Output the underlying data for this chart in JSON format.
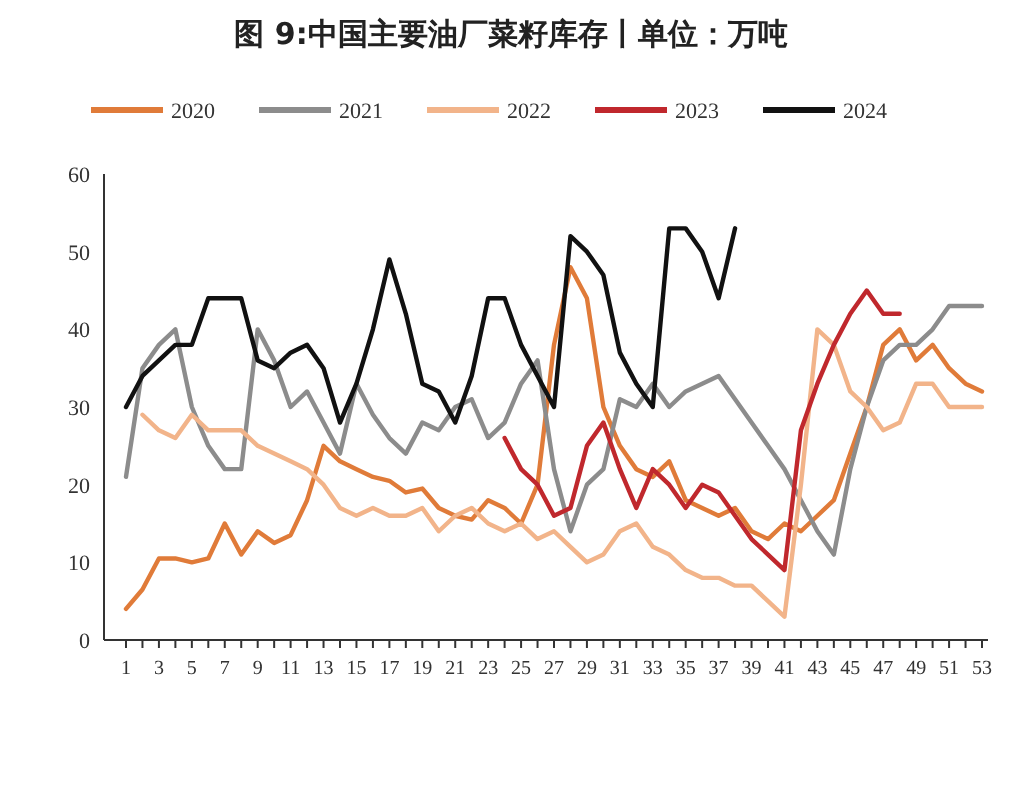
{
  "chart_data": {
    "type": "line",
    "title": "图 9:中国主要油厂菜籽库存丨单位：万吨",
    "categories": [
      "1",
      null,
      "3",
      null,
      "5",
      null,
      "7",
      null,
      "9",
      null,
      "11",
      null,
      "13",
      null,
      "15",
      null,
      "17",
      null,
      "19",
      null,
      "21",
      null,
      "23",
      null,
      "25",
      null,
      "27",
      null,
      "29",
      null,
      "31",
      null,
      "33",
      null,
      "35",
      null,
      "37",
      null,
      "39",
      null,
      "41",
      null,
      "43",
      null,
      "45",
      null,
      "47",
      null,
      "49",
      null,
      "51",
      null,
      "53"
    ],
    "series": [
      {
        "name": "2020",
        "color": "#e07b39",
        "values": [
          4,
          6.5,
          10.5,
          10.5,
          10,
          10.5,
          15,
          11,
          14,
          12.5,
          13.5,
          18,
          25,
          23,
          22,
          21,
          20.5,
          19,
          19.5,
          17,
          16,
          15.5,
          18,
          17,
          15,
          20,
          38,
          48,
          44,
          30,
          25,
          22,
          21,
          23,
          18,
          17,
          16,
          17,
          14,
          13,
          15,
          14,
          16,
          18,
          24,
          30,
          38,
          40,
          36,
          38,
          35,
          33,
          32
        ]
      },
      {
        "name": "2021",
        "color": "#8c8c8c",
        "values": [
          21,
          35,
          38,
          40,
          30,
          25,
          22,
          22,
          40,
          36,
          30,
          32,
          28,
          24,
          33,
          29,
          26,
          24,
          28,
          27,
          30,
          31,
          26,
          28,
          33,
          36,
          22,
          14,
          20,
          22,
          31,
          30,
          33,
          30,
          32,
          33,
          34,
          31,
          28,
          25,
          22,
          18,
          14,
          11,
          22,
          30,
          36,
          38,
          38,
          40,
          43,
          43,
          43
        ]
      },
      {
        "name": "2022",
        "color": "#f2b48a",
        "values": [
          null,
          29,
          27,
          26,
          29,
          27,
          27,
          27,
          25,
          24,
          23,
          22,
          20,
          17,
          16,
          17,
          16,
          16,
          17,
          14,
          16,
          17,
          15,
          14,
          15,
          13,
          14,
          12,
          10,
          11,
          14,
          15,
          12,
          11,
          9,
          8,
          8,
          7,
          7,
          5,
          3,
          20,
          40,
          38,
          32,
          30,
          27,
          28,
          33,
          33,
          30,
          30,
          30
        ]
      },
      {
        "name": "2023",
        "color": "#c0282d",
        "values": [
          null,
          null,
          null,
          null,
          null,
          null,
          null,
          null,
          null,
          null,
          null,
          null,
          null,
          null,
          null,
          null,
          null,
          null,
          null,
          null,
          null,
          null,
          null,
          26,
          22,
          20,
          16,
          17,
          25,
          28,
          22,
          17,
          22,
          20,
          17,
          20,
          19,
          16,
          13,
          11,
          9,
          27,
          33,
          38,
          42,
          45,
          42,
          42,
          null,
          null,
          null,
          null,
          null
        ]
      },
      {
        "name": "2024",
        "color": "#111111",
        "values": [
          30,
          34,
          36,
          38,
          38,
          44,
          44,
          44,
          36,
          35,
          37,
          38,
          35,
          28,
          33,
          40,
          49,
          42,
          33,
          32,
          28,
          34,
          44,
          44,
          38,
          34,
          30,
          52,
          50,
          47,
          37,
          33,
          30,
          53,
          53,
          50,
          44,
          53,
          null,
          null,
          null,
          null,
          null,
          null,
          null,
          null,
          null,
          null,
          null,
          null,
          null,
          null,
          null
        ]
      }
    ],
    "ylim": [
      0,
      60
    ],
    "yticks": [
      0,
      10,
      20,
      30,
      40,
      50,
      60
    ],
    "legend": "top"
  }
}
